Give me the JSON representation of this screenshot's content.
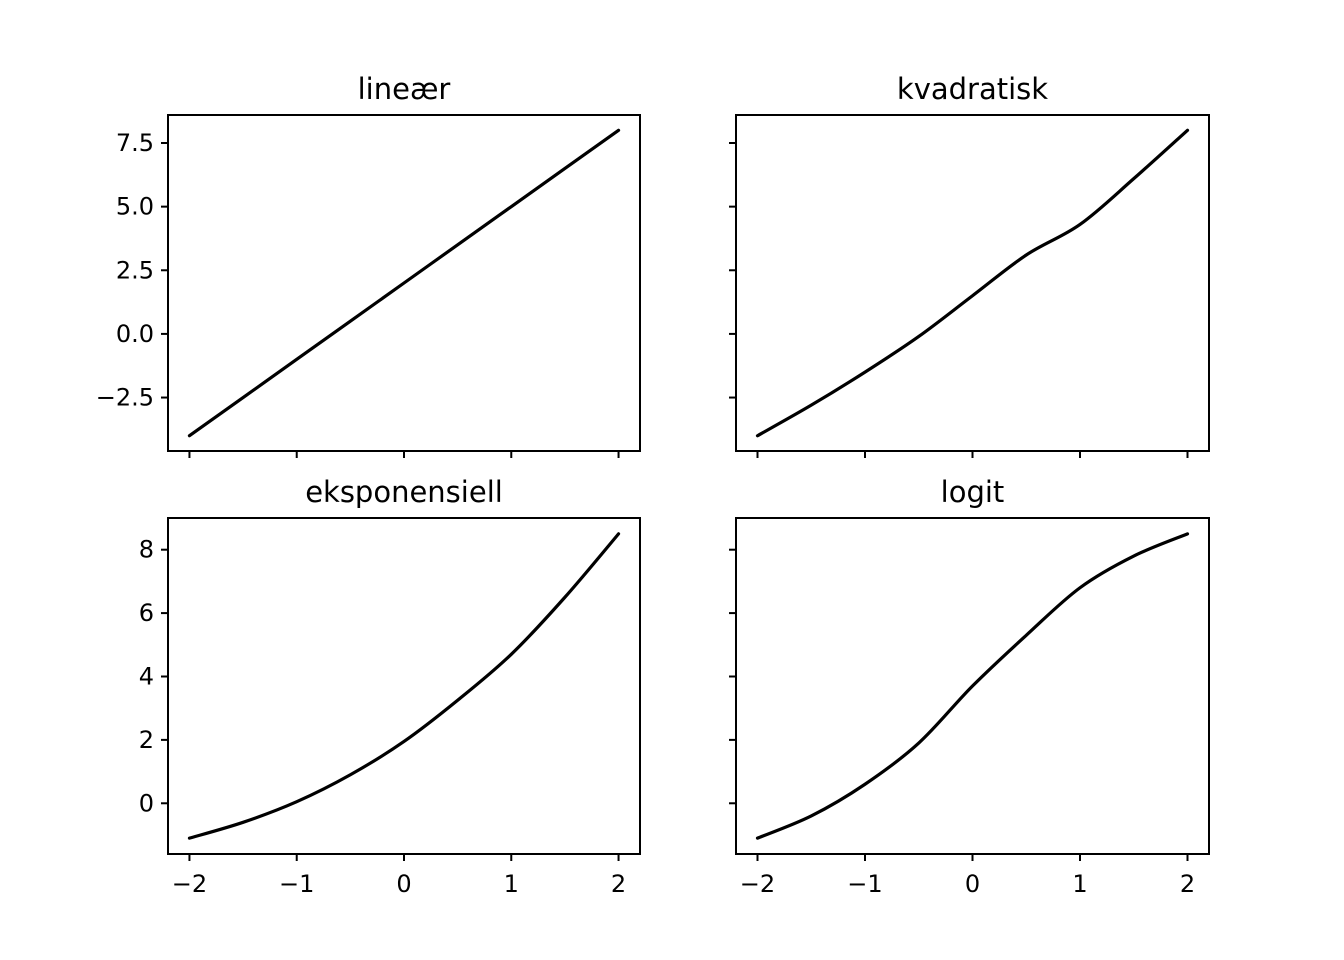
{
  "colors": {
    "line": "#000000",
    "background": "#ffffff"
  },
  "chart_data": [
    {
      "type": "line",
      "title": "lineær",
      "xlabel": "",
      "ylabel": "",
      "xlim": [
        -2.2,
        2.2
      ],
      "ylim": [
        -4.6,
        8.6
      ],
      "xticks": [
        -2,
        -1,
        0,
        1,
        2
      ],
      "xtick_labels": [
        "",
        "",
        "",
        "",
        ""
      ],
      "yticks": [
        -2.5,
        0.0,
        2.5,
        5.0,
        7.5
      ],
      "ytick_labels": [
        "−2.5",
        "0.0",
        "2.5",
        "5.0",
        "7.5"
      ],
      "grid": false,
      "series": [
        {
          "x": [
            -2,
            -1.5,
            -1,
            -0.5,
            0,
            0.5,
            1,
            1.5,
            2
          ],
          "y": [
            -4,
            -2.5,
            -1,
            0.5,
            2,
            3.5,
            5,
            6.5,
            8
          ]
        }
      ]
    },
    {
      "type": "line",
      "title": "kvadratisk",
      "xlabel": "",
      "ylabel": "",
      "xlim": [
        -2.2,
        2.2
      ],
      "ylim": [
        -4.6,
        8.6
      ],
      "xticks": [
        -2,
        -1,
        0,
        1,
        2
      ],
      "xtick_labels": [
        "",
        "",
        "",
        "",
        ""
      ],
      "yticks": [
        -2.5,
        0.0,
        2.5,
        5.0,
        7.5
      ],
      "ytick_labels": [
        "",
        "",
        "",
        "",
        ""
      ],
      "grid": false,
      "series": [
        {
          "x": [
            -2,
            -1.5,
            -1,
            -0.5,
            0,
            0.5,
            1,
            1.5,
            2
          ],
          "y": [
            -4,
            -2.8,
            -1.5,
            -0.1,
            1.5,
            3.1,
            4.3,
            6.1,
            8
          ]
        }
      ]
    },
    {
      "type": "line",
      "title": "eksponensiell",
      "xlabel": "",
      "ylabel": "",
      "xlim": [
        -2.2,
        2.2
      ],
      "ylim": [
        -1.6,
        9.0
      ],
      "xticks": [
        -2,
        -1,
        0,
        1,
        2
      ],
      "xtick_labels": [
        "−2",
        "−1",
        "0",
        "1",
        "2"
      ],
      "yticks": [
        0,
        2,
        4,
        6,
        8
      ],
      "ytick_labels": [
        "0",
        "2",
        "4",
        "6",
        "8"
      ],
      "grid": false,
      "series": [
        {
          "x": [
            -2,
            -1.5,
            -1,
            -0.5,
            0,
            0.5,
            1,
            1.5,
            2
          ],
          "y": [
            -1.1,
            -0.6,
            0.05,
            0.9,
            1.95,
            3.25,
            4.7,
            6.5,
            8.5
          ]
        }
      ]
    },
    {
      "type": "line",
      "title": "logit",
      "xlabel": "",
      "ylabel": "",
      "xlim": [
        -2.2,
        2.2
      ],
      "ylim": [
        -1.6,
        9.0
      ],
      "xticks": [
        -2,
        -1,
        0,
        1,
        2
      ],
      "xtick_labels": [
        "−2",
        "−1",
        "0",
        "1",
        "2"
      ],
      "yticks": [
        0,
        2,
        4,
        6,
        8
      ],
      "ytick_labels": [
        "",
        "",
        "",
        "",
        ""
      ],
      "grid": false,
      "series": [
        {
          "x": [
            -2,
            -1.5,
            -1,
            -0.5,
            0,
            0.5,
            1,
            1.5,
            2
          ],
          "y": [
            -1.1,
            -0.4,
            0.6,
            1.9,
            3.7,
            5.3,
            6.8,
            7.8,
            8.5
          ]
        }
      ]
    }
  ]
}
